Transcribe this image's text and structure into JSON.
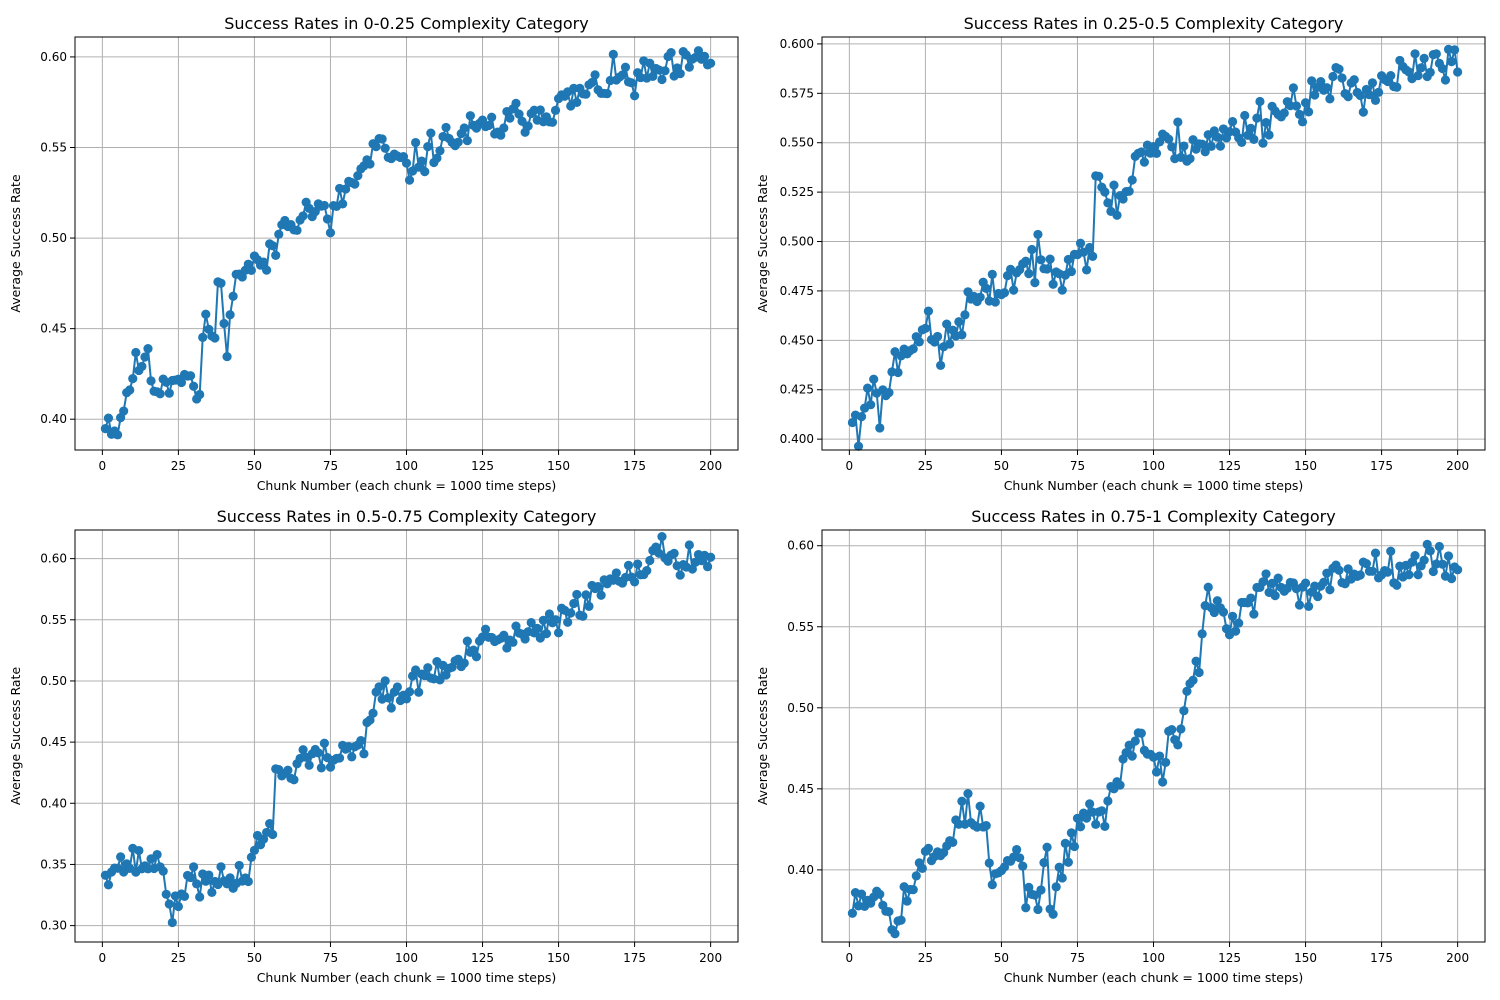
{
  "chart_data": [
    {
      "type": "line",
      "title": "Success Rates in 0-0.25 Complexity Category",
      "xlabel": "Chunk Number (each chunk = 1000 time steps)",
      "ylabel": "Average Success Rate",
      "xlim": [
        -9,
        209
      ],
      "ylim": [
        0.383,
        0.611
      ],
      "xticks": [
        0,
        25,
        50,
        75,
        100,
        125,
        150,
        175,
        200
      ],
      "yticks": [
        0.4,
        0.45,
        0.5,
        0.55,
        0.6
      ],
      "ytick_labels": [
        "0.40",
        "0.45",
        "0.50",
        "0.55",
        "0.60"
      ],
      "grid": true,
      "color": "#1f77b4",
      "anchors": [
        [
          1,
          0.401
        ],
        [
          5,
          0.394
        ],
        [
          9,
          0.421
        ],
        [
          14,
          0.436
        ],
        [
          17,
          0.418
        ],
        [
          22,
          0.422
        ],
        [
          27,
          0.427
        ],
        [
          32,
          0.411
        ],
        [
          34,
          0.46
        ],
        [
          37,
          0.44
        ],
        [
          38,
          0.478
        ],
        [
          40,
          0.458
        ],
        [
          41,
          0.448
        ],
        [
          45,
          0.483
        ],
        [
          55,
          0.487
        ],
        [
          60,
          0.51
        ],
        [
          70,
          0.517
        ],
        [
          75,
          0.508
        ],
        [
          80,
          0.527
        ],
        [
          85,
          0.535
        ],
        [
          90,
          0.55
        ],
        [
          100,
          0.538
        ],
        [
          110,
          0.551
        ],
        [
          120,
          0.558
        ],
        [
          130,
          0.561
        ],
        [
          140,
          0.569
        ],
        [
          150,
          0.573
        ],
        [
          160,
          0.581
        ],
        [
          170,
          0.589
        ],
        [
          175,
          0.586
        ],
        [
          180,
          0.59
        ],
        [
          190,
          0.593
        ],
        [
          200,
          0.6
        ]
      ],
      "noise": 0.007,
      "seed": 11
    },
    {
      "type": "line",
      "title": "Success Rates in 0.25-0.5 Complexity Category",
      "xlabel": "Chunk Number (each chunk = 1000 time steps)",
      "ylabel": "Average Success Rate",
      "xlim": [
        -9,
        209
      ],
      "ylim": [
        0.3945,
        0.6035
      ],
      "xticks": [
        0,
        25,
        50,
        75,
        100,
        125,
        150,
        175,
        200
      ],
      "yticks": [
        0.4,
        0.425,
        0.45,
        0.475,
        0.5,
        0.525,
        0.55,
        0.575,
        0.6
      ],
      "ytick_labels": [
        "0.400",
        "0.425",
        "0.450",
        "0.475",
        "0.500",
        "0.525",
        "0.550",
        "0.575",
        "0.600"
      ],
      "grid": true,
      "color": "#1f77b4",
      "anchors": [
        [
          1,
          0.412
        ],
        [
          3,
          0.4
        ],
        [
          6,
          0.43
        ],
        [
          10,
          0.415
        ],
        [
          15,
          0.438
        ],
        [
          20,
          0.452
        ],
        [
          25,
          0.455
        ],
        [
          30,
          0.445
        ],
        [
          35,
          0.455
        ],
        [
          40,
          0.47
        ],
        [
          45,
          0.47
        ],
        [
          50,
          0.478
        ],
        [
          55,
          0.485
        ],
        [
          60,
          0.49
        ],
        [
          65,
          0.485
        ],
        [
          70,
          0.49
        ],
        [
          75,
          0.497
        ],
        [
          80,
          0.497
        ],
        [
          81,
          0.525
        ],
        [
          90,
          0.52
        ],
        [
          95,
          0.545
        ],
        [
          100,
          0.547
        ],
        [
          110,
          0.55
        ],
        [
          120,
          0.55
        ],
        [
          130,
          0.558
        ],
        [
          140,
          0.565
        ],
        [
          150,
          0.573
        ],
        [
          160,
          0.578
        ],
        [
          170,
          0.578
        ],
        [
          180,
          0.583
        ],
        [
          190,
          0.587
        ],
        [
          200,
          0.59
        ]
      ],
      "noise": 0.008,
      "seed": 23
    },
    {
      "type": "line",
      "title": "Success Rates in 0.5-0.75 Complexity Category",
      "xlabel": "Chunk Number (each chunk = 1000 time steps)",
      "ylabel": "Average Success Rate",
      "xlim": [
        -9,
        209
      ],
      "ylim": [
        0.2866,
        0.6234
      ],
      "xticks": [
        0,
        25,
        50,
        75,
        100,
        125,
        150,
        175,
        200
      ],
      "yticks": [
        0.3,
        0.35,
        0.4,
        0.45,
        0.5,
        0.55,
        0.6
      ],
      "ytick_labels": [
        "0.30",
        "0.35",
        "0.40",
        "0.45",
        "0.50",
        "0.55",
        "0.60"
      ],
      "grid": true,
      "color": "#1f77b4",
      "anchors": [
        [
          1,
          0.347
        ],
        [
          10,
          0.352
        ],
        [
          20,
          0.35
        ],
        [
          23,
          0.305
        ],
        [
          26,
          0.32
        ],
        [
          28,
          0.345
        ],
        [
          35,
          0.33
        ],
        [
          45,
          0.34
        ],
        [
          48,
          0.345
        ],
        [
          52,
          0.375
        ],
        [
          56,
          0.375
        ],
        [
          57,
          0.43
        ],
        [
          60,
          0.42
        ],
        [
          65,
          0.437
        ],
        [
          75,
          0.435
        ],
        [
          80,
          0.445
        ],
        [
          85,
          0.445
        ],
        [
          90,
          0.49
        ],
        [
          95,
          0.485
        ],
        [
          100,
          0.49
        ],
        [
          105,
          0.505
        ],
        [
          115,
          0.51
        ],
        [
          125,
          0.53
        ],
        [
          135,
          0.535
        ],
        [
          145,
          0.54
        ],
        [
          150,
          0.55
        ],
        [
          155,
          0.565
        ],
        [
          160,
          0.565
        ],
        [
          165,
          0.58
        ],
        [
          170,
          0.59
        ],
        [
          175,
          0.593
        ],
        [
          180,
          0.595
        ],
        [
          185,
          0.608
        ],
        [
          190,
          0.598
        ],
        [
          200,
          0.602
        ]
      ],
      "noise": 0.009,
      "seed": 37
    },
    {
      "type": "line",
      "title": "Success Rates in 0.75-1 Complexity Category",
      "xlabel": "Chunk Number (each chunk = 1000 time steps)",
      "ylabel": "Average Success Rate",
      "xlim": [
        -9,
        209
      ],
      "ylim": [
        0.3555,
        0.6097
      ],
      "xticks": [
        0,
        25,
        50,
        75,
        100,
        125,
        150,
        175,
        200
      ],
      "yticks": [
        0.4,
        0.45,
        0.5,
        0.55,
        0.6
      ],
      "ytick_labels": [
        "0.40",
        "0.45",
        "0.50",
        "0.55",
        "0.60"
      ],
      "grid": true,
      "color": "#1f77b4",
      "anchors": [
        [
          1,
          0.385
        ],
        [
          10,
          0.385
        ],
        [
          15,
          0.37
        ],
        [
          20,
          0.39
        ],
        [
          25,
          0.405
        ],
        [
          30,
          0.41
        ],
        [
          35,
          0.43
        ],
        [
          38,
          0.437
        ],
        [
          45,
          0.425
        ],
        [
          47,
          0.39
        ],
        [
          55,
          0.41
        ],
        [
          58,
          0.39
        ],
        [
          60,
          0.38
        ],
        [
          65,
          0.4
        ],
        [
          67,
          0.372
        ],
        [
          70,
          0.4
        ],
        [
          75,
          0.43
        ],
        [
          80,
          0.435
        ],
        [
          85,
          0.435
        ],
        [
          90,
          0.47
        ],
        [
          95,
          0.48
        ],
        [
          100,
          0.47
        ],
        [
          103,
          0.457
        ],
        [
          105,
          0.485
        ],
        [
          110,
          0.49
        ],
        [
          112,
          0.52
        ],
        [
          115,
          0.53
        ],
        [
          117,
          0.565
        ],
        [
          125,
          0.55
        ],
        [
          130,
          0.56
        ],
        [
          137,
          0.575
        ],
        [
          145,
          0.57
        ],
        [
          150,
          0.57
        ],
        [
          155,
          0.578
        ],
        [
          160,
          0.58
        ],
        [
          165,
          0.585
        ],
        [
          175,
          0.588
        ],
        [
          185,
          0.59
        ],
        [
          200,
          0.59
        ]
      ],
      "noise": 0.008,
      "seed": 53
    }
  ]
}
